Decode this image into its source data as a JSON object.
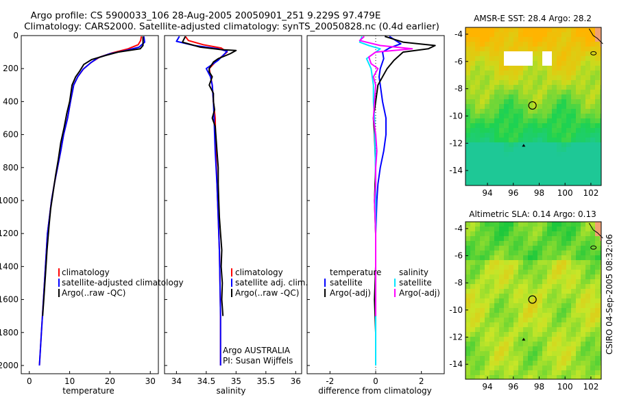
{
  "title_line1": "Argo profile: CS 5900033_106 28-Aug-2005 20050901_251 9.229S 97.479E",
  "title_line2": "Climatology: CARS2000. Satellite-adjusted climatology: synTS_20050828.nc (0.4d earlier)",
  "side_label": "CSIRO 04-Sep-2005 08:32:06",
  "chart_data": [
    {
      "id": "temperature",
      "type": "line",
      "xlabel": "temperature",
      "ylabel": "",
      "xlim": [
        -2,
        32
      ],
      "ylim": [
        2050,
        0
      ],
      "xticks": [
        0,
        10,
        20,
        30
      ],
      "xtick_labels": [
        "0",
        "10",
        "20",
        "30"
      ],
      "yticks": [
        0,
        200,
        400,
        600,
        800,
        1000,
        1200,
        1400,
        1600,
        1800,
        2000
      ],
      "ytick_labels": [
        "0",
        "200",
        "400",
        "600",
        "800",
        "1000",
        "1200",
        "1400",
        "1600",
        "1800",
        "2000"
      ],
      "legend": [
        "climatology",
        "satellite-adjusted climatology",
        "Argo(..raw -QC)"
      ],
      "series": [
        {
          "name": "climatology",
          "color": "#ff0000",
          "points": [
            [
              27.8,
              5
            ],
            [
              27.6,
              30
            ],
            [
              27.0,
              55
            ],
            [
              24.5,
              80
            ],
            [
              20.5,
              105
            ],
            [
              17.5,
              130
            ],
            [
              15.5,
              160
            ],
            [
              13.5,
              200
            ],
            [
              12.0,
              250
            ],
            [
              11.0,
              300
            ],
            [
              10.2,
              400
            ],
            [
              9.5,
              500
            ],
            [
              8.5,
              600
            ],
            [
              7.8,
              700
            ],
            [
              7.0,
              800
            ],
            [
              6.2,
              900
            ],
            [
              5.5,
              1000
            ],
            [
              5.0,
              1100
            ],
            [
              4.5,
              1200
            ],
            [
              4.0,
              1400
            ],
            [
              3.5,
              1600
            ],
            [
              3.0,
              1800
            ],
            [
              2.5,
              2000
            ]
          ]
        },
        {
          "name": "satellite-adjusted climatology",
          "color": "#0000ff",
          "points": [
            [
              28.4,
              5
            ],
            [
              28.6,
              40
            ],
            [
              27.2,
              70
            ],
            [
              24.0,
              90
            ],
            [
              20.0,
              110
            ],
            [
              17.0,
              135
            ],
            [
              15.2,
              165
            ],
            [
              13.3,
              205
            ],
            [
              12.0,
              250
            ],
            [
              11.0,
              300
            ],
            [
              10.2,
              400
            ],
            [
              9.5,
              500
            ],
            [
              8.5,
              600
            ],
            [
              7.8,
              700
            ],
            [
              7.0,
              800
            ],
            [
              6.2,
              900
            ],
            [
              5.5,
              1000
            ],
            [
              5.0,
              1100
            ],
            [
              4.5,
              1200
            ],
            [
              4.0,
              1400
            ],
            [
              3.5,
              1600
            ],
            [
              3.0,
              1800
            ],
            [
              2.5,
              2000
            ]
          ]
        },
        {
          "name": "Argo(..raw -QC)",
          "color": "#000000",
          "points": [
            [
              28.2,
              5
            ],
            [
              28.2,
              60
            ],
            [
              27.5,
              80
            ],
            [
              22.0,
              100
            ],
            [
              19.0,
              120
            ],
            [
              15.5,
              145
            ],
            [
              13.5,
              175
            ],
            [
              12.5,
              215
            ],
            [
              11.5,
              250
            ],
            [
              10.6,
              300
            ],
            [
              10.0,
              400
            ],
            [
              9.3,
              470
            ],
            [
              8.6,
              560
            ],
            [
              7.8,
              650
            ],
            [
              7.2,
              750
            ],
            [
              6.5,
              850
            ],
            [
              5.9,
              950
            ],
            [
              5.3,
              1050
            ],
            [
              4.9,
              1150
            ],
            [
              4.4,
              1300
            ],
            [
              4.0,
              1450
            ],
            [
              3.6,
              1600
            ],
            [
              3.3,
              1700
            ]
          ]
        }
      ]
    },
    {
      "id": "salinity",
      "type": "line",
      "xlabel": "salinity",
      "xlim": [
        33.8,
        36.1
      ],
      "ylim": [
        2050,
        0
      ],
      "xticks": [
        34,
        34.5,
        35,
        35.5,
        36
      ],
      "xtick_labels": [
        "34",
        "34.5",
        "35",
        "35.5",
        "36"
      ],
      "legend": [
        "climatology",
        "satellite adj. clim.",
        "Argo(..raw -QC)"
      ],
      "annotations": [
        "Argo AUSTRALIA",
        "PI: Susan Wijffels"
      ],
      "series": [
        {
          "name": "climatology",
          "color": "#ff0000",
          "points": [
            [
              34.15,
              5
            ],
            [
              34.2,
              30
            ],
            [
              34.45,
              55
            ],
            [
              34.75,
              75
            ],
            [
              34.85,
              100
            ],
            [
              34.68,
              150
            ],
            [
              34.55,
              200
            ],
            [
              34.6,
              300
            ],
            [
              34.62,
              400
            ],
            [
              34.65,
              500
            ],
            [
              34.66,
              700
            ],
            [
              34.68,
              900
            ],
            [
              34.7,
              1100
            ],
            [
              34.72,
              1300
            ],
            [
              34.73,
              1500
            ],
            [
              34.74,
              1700
            ],
            [
              34.74,
              2000
            ]
          ]
        },
        {
          "name": "satellite adj. clim.",
          "color": "#0000ff",
          "points": [
            [
              34.05,
              5
            ],
            [
              34.0,
              35
            ],
            [
              34.3,
              60
            ],
            [
              34.7,
              80
            ],
            [
              34.85,
              95
            ],
            [
              34.7,
              150
            ],
            [
              34.5,
              200
            ],
            [
              34.57,
              250
            ],
            [
              34.6,
              300
            ],
            [
              34.62,
              400
            ],
            [
              34.63,
              500
            ],
            [
              34.65,
              700
            ],
            [
              34.68,
              900
            ],
            [
              34.7,
              1100
            ],
            [
              34.72,
              1300
            ],
            [
              34.73,
              1500
            ],
            [
              34.74,
              1700
            ],
            [
              34.74,
              2000
            ]
          ]
        },
        {
          "name": "Argo(..raw -QC)",
          "color": "#000000",
          "points": [
            [
              34.15,
              5
            ],
            [
              34.1,
              40
            ],
            [
              34.4,
              70
            ],
            [
              34.75,
              85
            ],
            [
              35.0,
              90
            ],
            [
              34.9,
              110
            ],
            [
              34.7,
              140
            ],
            [
              34.62,
              160
            ],
            [
              34.55,
              200
            ],
            [
              34.55,
              220
            ],
            [
              34.6,
              250
            ],
            [
              34.55,
              300
            ],
            [
              34.62,
              350
            ],
            [
              34.62,
              400
            ],
            [
              34.64,
              450
            ],
            [
              34.6,
              500
            ],
            [
              34.65,
              550
            ],
            [
              34.66,
              600
            ],
            [
              34.68,
              700
            ],
            [
              34.7,
              800
            ],
            [
              34.7,
              900
            ],
            [
              34.71,
              1000
            ],
            [
              34.72,
              1100
            ],
            [
              34.74,
              1200
            ],
            [
              34.76,
              1300
            ],
            [
              34.75,
              1400
            ],
            [
              34.77,
              1500
            ],
            [
              34.76,
              1600
            ],
            [
              34.78,
              1700
            ]
          ]
        }
      ]
    },
    {
      "id": "difference",
      "type": "line",
      "xlabel": "difference from climatology",
      "xlim": [
        -3,
        3
      ],
      "ylim": [
        2050,
        0
      ],
      "xticks": [
        -2,
        0,
        2
      ],
      "xtick_labels": [
        "-2",
        "0",
        "2"
      ],
      "legend_left_title": "temperature",
      "legend_right_title": "salinity",
      "legend": [
        "satellite",
        "Argo(-adj)",
        "satellite",
        "Argo(-adj)"
      ],
      "series": [
        {
          "name": "temperature satellite",
          "color": "#0000ff",
          "points": [
            [
              0.6,
              5
            ],
            [
              1.1,
              50
            ],
            [
              0.6,
              75
            ],
            [
              0.3,
              100
            ],
            [
              0.35,
              140
            ],
            [
              0.2,
              200
            ],
            [
              0.15,
              250
            ],
            [
              0.2,
              300
            ],
            [
              0.3,
              400
            ],
            [
              0.45,
              500
            ],
            [
              0.45,
              600
            ],
            [
              0.35,
              700
            ],
            [
              0.2,
              800
            ],
            [
              0.1,
              900
            ],
            [
              0.05,
              1000
            ],
            [
              0.0,
              1200
            ],
            [
              0.0,
              2000
            ]
          ]
        },
        {
          "name": "temperature Argo(-adj)",
          "color": "#000000",
          "points": [
            [
              0.4,
              5
            ],
            [
              1.2,
              40
            ],
            [
              2.6,
              60
            ],
            [
              2.3,
              80
            ],
            [
              1.2,
              100
            ],
            [
              0.8,
              150
            ],
            [
              0.5,
              200
            ],
            [
              0.3,
              250
            ],
            [
              0.1,
              300
            ],
            [
              0.0,
              400
            ],
            [
              -0.1,
              500
            ],
            [
              -0.05,
              600
            ],
            [
              0.0,
              800
            ],
            [
              -0.05,
              1000
            ],
            [
              0.0,
              1200
            ],
            [
              0.0,
              1400
            ],
            [
              -0.05,
              1600
            ],
            [
              0.0,
              1800
            ],
            [
              0.0,
              1900
            ]
          ]
        },
        {
          "name": "salinity satellite",
          "color": "#00e5ff",
          "points": [
            [
              -0.6,
              5
            ],
            [
              -0.7,
              40
            ],
            [
              -0.3,
              60
            ],
            [
              0.2,
              80
            ],
            [
              -0.1,
              110
            ],
            [
              -0.4,
              140
            ],
            [
              -0.2,
              200
            ],
            [
              -0.1,
              300
            ],
            [
              -0.1,
              400
            ],
            [
              -0.05,
              500
            ],
            [
              -0.02,
              700
            ],
            [
              0.0,
              900
            ],
            [
              0.0,
              1200
            ],
            [
              0.0,
              1500
            ],
            [
              0.0,
              2000
            ]
          ]
        },
        {
          "name": "salinity Argo(-adj)",
          "color": "#ff00ff",
          "points": [
            [
              -0.5,
              5
            ],
            [
              -0.7,
              30
            ],
            [
              0.2,
              60
            ],
            [
              1.6,
              80
            ],
            [
              0.8,
              90
            ],
            [
              0.0,
              100
            ],
            [
              -0.3,
              130
            ],
            [
              -0.2,
              170
            ],
            [
              0.1,
              200
            ],
            [
              -0.1,
              250
            ],
            [
              0.0,
              300
            ],
            [
              -0.05,
              400
            ],
            [
              -0.1,
              500
            ],
            [
              0.0,
              600
            ],
            [
              0.05,
              700
            ],
            [
              0.0,
              800
            ],
            [
              0.0,
              900
            ],
            [
              -0.05,
              1000
            ],
            [
              0.0,
              1200
            ],
            [
              0.0,
              1400
            ],
            [
              0.0,
              1600
            ],
            [
              0.0,
              1700
            ]
          ]
        }
      ]
    },
    {
      "id": "amsre_sst_map",
      "type": "heatmap",
      "title": "AMSR-E SST: 28.4 Argo: 28.2",
      "xlim": [
        92.3,
        102.8
      ],
      "ylim": [
        -15.1,
        -3.5
      ],
      "xticks": [
        94,
        96,
        98,
        100,
        102
      ],
      "xtick_labels": [
        "94",
        "96",
        "98",
        "100",
        "102"
      ],
      "yticks": [
        -4,
        -6,
        -8,
        -10,
        -12,
        -14
      ],
      "ytick_labels": [
        "-4",
        "-6",
        "-8",
        "-10",
        "-12",
        "-14"
      ],
      "float_position": [
        97.479,
        -9.229
      ],
      "colors": {
        "warm": "#ffb400",
        "mid": "#c8dc1e",
        "cool": "#1ed250",
        "cold": "#1ec896",
        "land": "#f0a070",
        "missing": "#ffffff"
      }
    },
    {
      "id": "altimetric_sla_map",
      "type": "heatmap",
      "title": "Altimetric SLA: 0.14 Argo: 0.13",
      "xlim": [
        92.3,
        102.8
      ],
      "ylim": [
        -15.1,
        -3.5
      ],
      "xticks": [
        94,
        96,
        98,
        100,
        102
      ],
      "xtick_labels": [
        "94",
        "96",
        "98",
        "100",
        "102"
      ],
      "yticks": [
        -4,
        -6,
        -8,
        -10,
        -12,
        -14
      ],
      "ytick_labels": [
        "-4",
        "-6",
        "-8",
        "-10",
        "-12",
        "-14"
      ],
      "float_position": [
        97.479,
        -9.229
      ],
      "colors": {
        "high": "#ffa500",
        "mid": "#c8e628",
        "low": "#1ec83c",
        "land": "#f0a070"
      }
    }
  ]
}
